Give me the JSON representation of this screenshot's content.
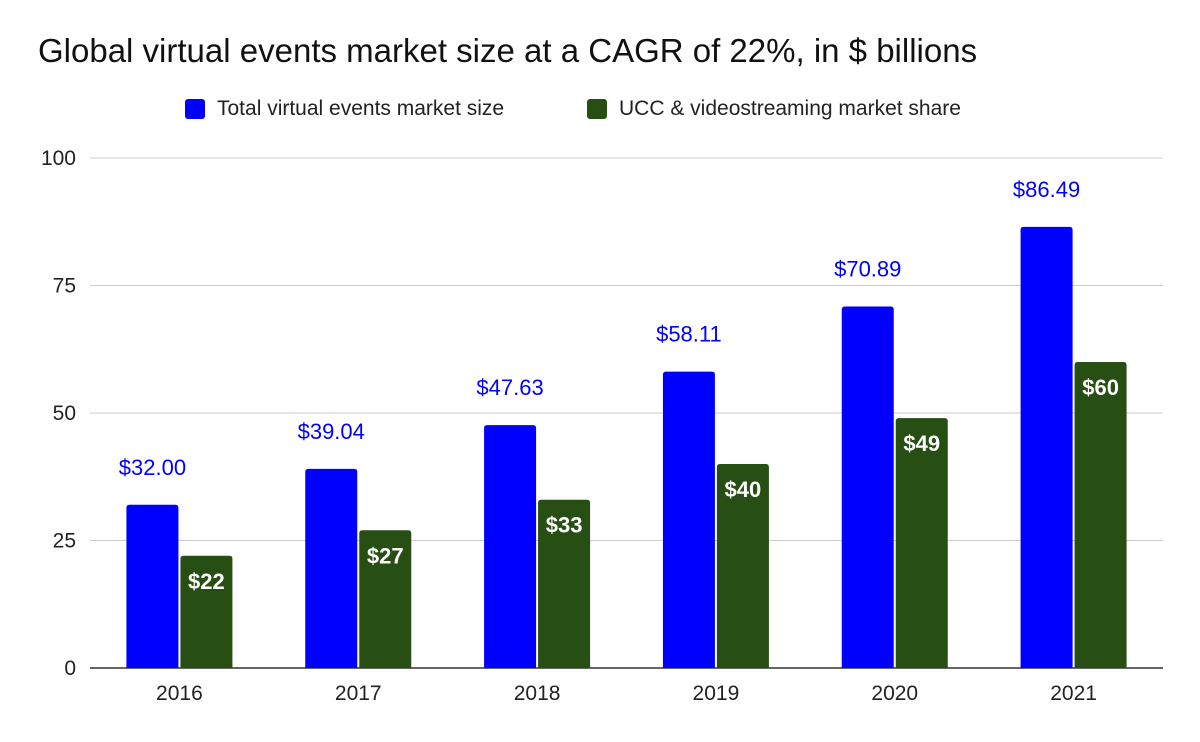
{
  "chart_data": {
    "type": "bar",
    "title": "Global virtual events market size at a CAGR of 22%, in $ billions",
    "xlabel": "",
    "ylabel": "",
    "categories": [
      "2016",
      "2017",
      "2018",
      "2019",
      "2020",
      "2021"
    ],
    "series": [
      {
        "name": "Total virtual events market size",
        "values": [
          32.0,
          39.04,
          47.63,
          58.11,
          70.89,
          86.49
        ],
        "labels": [
          "$32.00",
          "$39.04",
          "$47.63",
          "$58.11",
          "$70.89",
          "$86.49"
        ],
        "color": "#0000ff",
        "label_color": "#0000ff",
        "label_position": "above"
      },
      {
        "name": "UCC & videostreaming market share",
        "values": [
          22,
          27,
          33,
          40,
          49,
          60
        ],
        "labels": [
          "$22",
          "$27",
          "$33",
          "$40",
          "$49",
          "$60"
        ],
        "color": "#274e13",
        "label_color": "#ffffff",
        "label_position": "inside-top"
      }
    ],
    "ylim": [
      0,
      100
    ],
    "yticks": [
      0,
      25,
      50,
      75,
      100
    ],
    "grid": true,
    "legend_position": "top"
  }
}
